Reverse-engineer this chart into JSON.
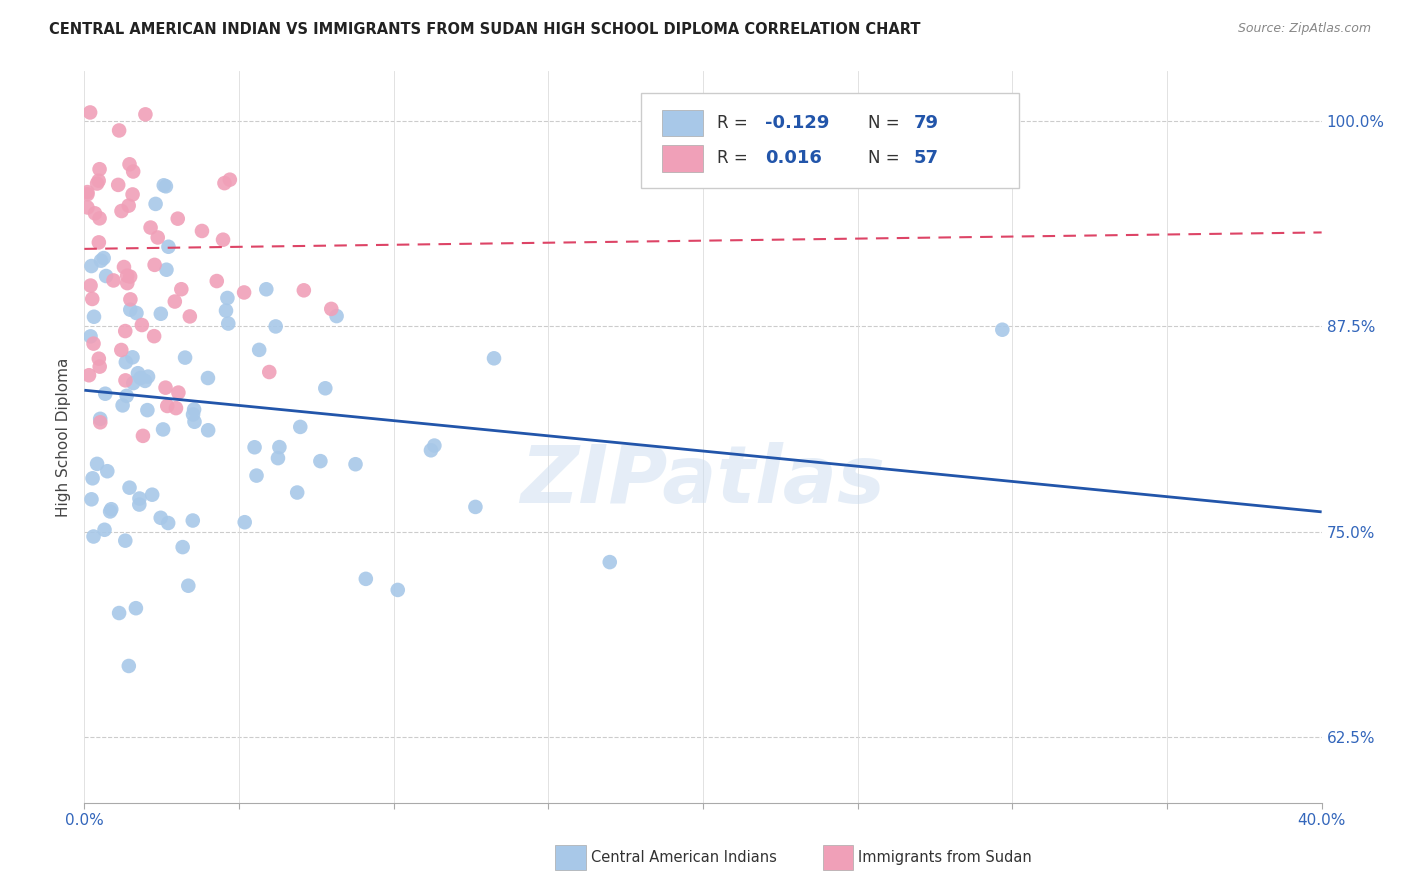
{
  "title": "CENTRAL AMERICAN INDIAN VS IMMIGRANTS FROM SUDAN HIGH SCHOOL DIPLOMA CORRELATION CHART",
  "source": "Source: ZipAtlas.com",
  "ylabel": "High School Diploma",
  "legend_blue_label": "Central American Indians",
  "legend_pink_label": "Immigrants from Sudan",
  "blue_color": "#a8c8e8",
  "pink_color": "#f0a0b8",
  "blue_line_color": "#2255aa",
  "pink_line_color": "#dd4466",
  "background_color": "#ffffff",
  "watermark_text": "ZIPatlas",
  "xlim": [
    0.0,
    0.4
  ],
  "ylim": [
    0.585,
    1.03
  ],
  "ytick_positions": [
    0.625,
    0.75,
    0.875,
    1.0
  ],
  "ytick_labels": [
    "62.5%",
    "75.0%",
    "87.5%",
    "100.0%"
  ],
  "blue_trend_x": [
    0.0,
    0.4
  ],
  "blue_trend_y": [
    0.836,
    0.762
  ],
  "pink_trend_x": [
    0.0,
    0.4
  ],
  "pink_trend_y": [
    0.922,
    0.932
  ],
  "blue_N": 79,
  "pink_N": 57,
  "blue_R": "-0.129",
  "pink_R": "0.016"
}
